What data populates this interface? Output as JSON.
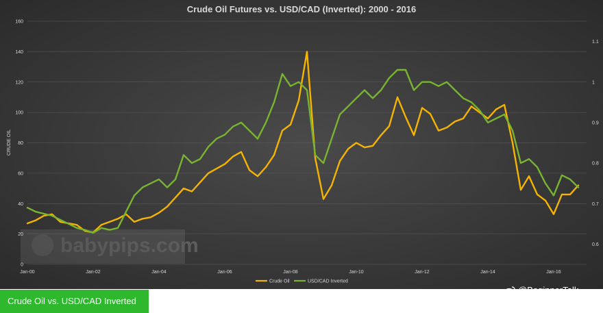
{
  "chart_data": {
    "type": "line",
    "title": "Crude Oil Futures vs. USD/CAD (Inverted): 2000 - 2016",
    "ylabel": "CRUDE OIL",
    "ylim": [
      0,
      160
    ],
    "y2lim": [
      0.55,
      1.15
    ],
    "yticks": [
      0,
      20,
      40,
      60,
      80,
      100,
      120,
      140,
      160
    ],
    "y2ticks": [
      "0.6",
      "0.7",
      "0.8",
      "0.9",
      "1",
      "1.1"
    ],
    "y2tick_values": [
      0.6,
      0.7,
      0.8,
      0.9,
      1.0,
      1.1
    ],
    "xticks": [
      "Jan-00",
      "Jan-02",
      "Jan-04",
      "Jan-06",
      "Jan-08",
      "Jan-10",
      "Jan-12",
      "Jan-14",
      "Jan-16"
    ],
    "xtick_values": [
      2000,
      2002,
      2004,
      2006,
      2008,
      2010,
      2012,
      2014,
      2016
    ],
    "xlim": [
      2000,
      2017
    ],
    "grid": true,
    "legend": "bottom-center",
    "series": [
      {
        "name": "Crude Oil",
        "axis": "left",
        "color": "#f5b400",
        "x": [
          2000.0,
          2000.25,
          2000.5,
          2000.75,
          2001.0,
          2001.25,
          2001.5,
          2001.75,
          2002.0,
          2002.25,
          2002.5,
          2002.75,
          2003.0,
          2003.25,
          2003.5,
          2003.75,
          2004.0,
          2004.25,
          2004.5,
          2004.75,
          2005.0,
          2005.25,
          2005.5,
          2005.75,
          2006.0,
          2006.25,
          2006.5,
          2006.75,
          2007.0,
          2007.25,
          2007.5,
          2007.75,
          2008.0,
          2008.25,
          2008.5,
          2008.75,
          2009.0,
          2009.25,
          2009.5,
          2009.75,
          2010.0,
          2010.25,
          2010.5,
          2010.75,
          2011.0,
          2011.25,
          2011.5,
          2011.75,
          2012.0,
          2012.25,
          2012.5,
          2012.75,
          2013.0,
          2013.25,
          2013.5,
          2013.75,
          2014.0,
          2014.25,
          2014.5,
          2014.75,
          2015.0,
          2015.25,
          2015.5,
          2015.75,
          2016.0,
          2016.25,
          2016.5,
          2016.75
        ],
        "values": [
          27,
          29,
          32,
          33,
          28,
          27,
          26,
          22,
          21,
          26,
          28,
          30,
          33,
          28,
          30,
          31,
          34,
          38,
          44,
          50,
          48,
          54,
          60,
          63,
          66,
          71,
          74,
          62,
          58,
          64,
          72,
          88,
          92,
          108,
          140,
          70,
          43,
          52,
          68,
          76,
          80,
          77,
          78,
          85,
          91,
          110,
          97,
          85,
          103,
          99,
          88,
          90,
          94,
          96,
          104,
          100,
          96,
          102,
          105,
          80,
          49,
          58,
          46,
          42,
          33,
          46,
          46,
          52
        ]
      },
      {
        "name": "USD/CAD Inverted",
        "axis": "right",
        "color": "#79b431",
        "x": [
          2000.0,
          2000.25,
          2000.5,
          2000.75,
          2001.0,
          2001.25,
          2001.5,
          2001.75,
          2002.0,
          2002.25,
          2002.5,
          2002.75,
          2003.0,
          2003.25,
          2003.5,
          2003.75,
          2004.0,
          2004.25,
          2004.5,
          2004.75,
          2005.0,
          2005.25,
          2005.5,
          2005.75,
          2006.0,
          2006.25,
          2006.5,
          2006.75,
          2007.0,
          2007.25,
          2007.5,
          2007.75,
          2008.0,
          2008.25,
          2008.5,
          2008.75,
          2009.0,
          2009.25,
          2009.5,
          2009.75,
          2010.0,
          2010.25,
          2010.5,
          2010.75,
          2011.0,
          2011.25,
          2011.5,
          2011.75,
          2012.0,
          2012.25,
          2012.5,
          2012.75,
          2013.0,
          2013.25,
          2013.5,
          2013.75,
          2014.0,
          2014.25,
          2014.5,
          2014.75,
          2015.0,
          2015.25,
          2015.5,
          2015.75,
          2016.0,
          2016.25,
          2016.5,
          2016.75
        ],
        "values": [
          0.69,
          0.68,
          0.675,
          0.67,
          0.66,
          0.65,
          0.64,
          0.635,
          0.628,
          0.64,
          0.635,
          0.64,
          0.68,
          0.72,
          0.74,
          0.75,
          0.76,
          0.74,
          0.76,
          0.82,
          0.8,
          0.81,
          0.84,
          0.86,
          0.87,
          0.89,
          0.9,
          0.88,
          0.86,
          0.9,
          0.95,
          1.02,
          0.99,
          1.0,
          0.98,
          0.82,
          0.8,
          0.86,
          0.92,
          0.94,
          0.96,
          0.98,
          0.96,
          0.98,
          1.01,
          1.03,
          1.03,
          0.98,
          1.0,
          1.0,
          0.99,
          1.0,
          0.98,
          0.96,
          0.95,
          0.93,
          0.9,
          0.91,
          0.92,
          0.88,
          0.8,
          0.81,
          0.79,
          0.75,
          0.72,
          0.77,
          0.76,
          0.74
        ]
      }
    ]
  },
  "caption": "Crude Oil vs. USD/CAD Inverted",
  "attribution": "@BeginnerTalk",
  "watermark": "babypips.com",
  "colors": {
    "panel_bg": "#3b3b3b",
    "caption_bg": "#2db82d",
    "crude": "#f5b400",
    "usdcad": "#79b431"
  }
}
